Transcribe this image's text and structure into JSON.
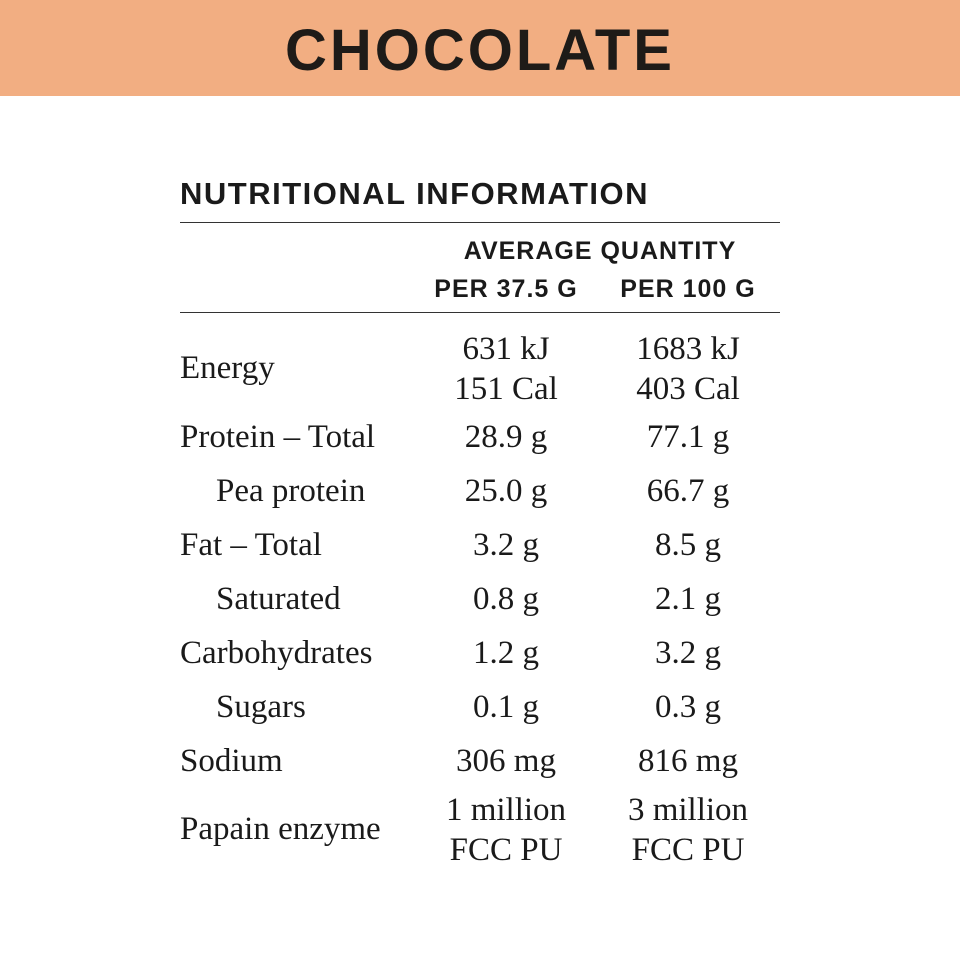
{
  "header": {
    "title": "CHOCOLATE"
  },
  "panel": {
    "title": "NUTRITIONAL INFORMATION",
    "column_group": "AVERAGE QUANTITY",
    "columns": [
      "PER 37.5 G",
      "PER 100 G"
    ]
  },
  "rows": [
    {
      "label": "Energy",
      "v1": [
        "631 kJ",
        "151 Cal"
      ],
      "v2": [
        "1683 kJ",
        "403 Cal"
      ]
    },
    {
      "label": "Protein – Total",
      "v1": [
        "28.9 g"
      ],
      "v2": [
        "77.1 g"
      ]
    },
    {
      "label": "Pea protein",
      "v1": [
        "25.0 g"
      ],
      "v2": [
        "66.7 g"
      ]
    },
    {
      "label": "Fat – Total",
      "v1": [
        "3.2 g"
      ],
      "v2": [
        "8.5 g"
      ]
    },
    {
      "label": "Saturated",
      "v1": [
        "0.8 g"
      ],
      "v2": [
        "2.1 g"
      ]
    },
    {
      "label": "Carbohydrates",
      "v1": [
        "1.2 g"
      ],
      "v2": [
        "3.2 g"
      ]
    },
    {
      "label": "Sugars",
      "v1": [
        "0.1 g"
      ],
      "v2": [
        "0.3 g"
      ]
    },
    {
      "label": "Sodium",
      "v1": [
        "306 mg"
      ],
      "v2": [
        "816 mg"
      ]
    },
    {
      "label": "Papain enzyme",
      "v1": [
        "1 million",
        "FCC PU"
      ],
      "v2": [
        "3 million",
        "FCC PU"
      ]
    }
  ]
}
